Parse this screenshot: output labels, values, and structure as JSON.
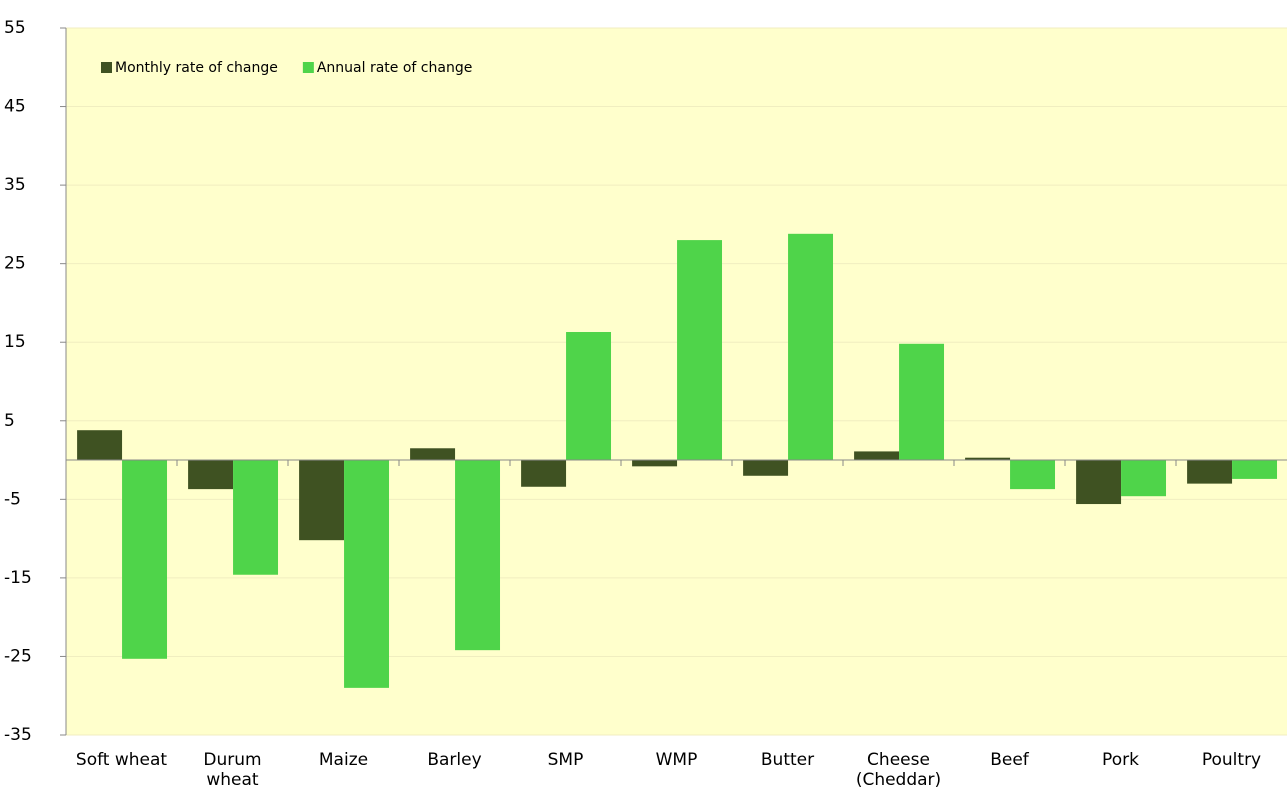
{
  "chart_data": {
    "type": "bar",
    "categories": [
      "Soft wheat",
      "Durum\nwheat",
      "Maize",
      "Barley",
      "SMP",
      "WMP",
      "Butter",
      "Cheese\n(Cheddar)",
      "Beef",
      "Pork",
      "Poultry"
    ],
    "series": [
      {
        "name": "Monthly rate of change",
        "color": "#3f5222",
        "values": [
          3.8,
          -3.7,
          -10.2,
          1.5,
          -3.4,
          -0.8,
          -2.0,
          1.1,
          0.3,
          -5.6,
          -3.0
        ]
      },
      {
        "name": "Annual rate of change",
        "color": "#4fd44a",
        "values": [
          -25.3,
          -14.6,
          -29.0,
          -24.2,
          16.3,
          28.0,
          28.8,
          14.8,
          -3.7,
          -4.6,
          -2.4
        ]
      }
    ],
    "ylim": [
      -35,
      55
    ],
    "yticks": [
      -35,
      -25,
      -15,
      -5,
      5,
      15,
      25,
      35,
      45,
      55
    ],
    "grid": true,
    "legend": "top-left",
    "background": "#ffffcc"
  }
}
